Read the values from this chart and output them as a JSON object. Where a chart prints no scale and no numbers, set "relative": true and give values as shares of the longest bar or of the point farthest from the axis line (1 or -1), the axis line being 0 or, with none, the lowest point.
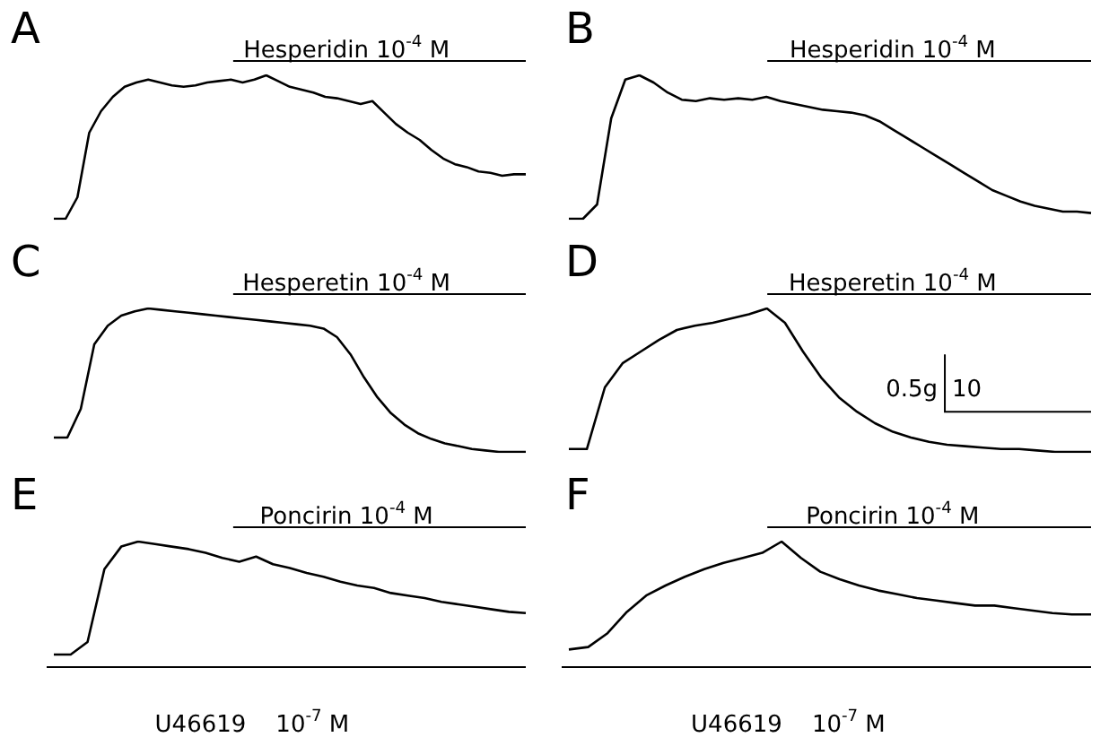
{
  "chart_data": [
    {
      "type": "line",
      "title": "A",
      "relative": true,
      "marker": "none",
      "categories": [
        null,
        null,
        null,
        null,
        null,
        null,
        null,
        null,
        null,
        null,
        null,
        null,
        null,
        null,
        null,
        null,
        null,
        null,
        null,
        null,
        null,
        null,
        null,
        null,
        null,
        null,
        null,
        null,
        null,
        null,
        null,
        null,
        null,
        null,
        null,
        null,
        null,
        null,
        null,
        null,
        null
      ],
      "series": [
        {
          "color": "#000000",
          "values": [
            0,
            0,
            0.15,
            0.6,
            0.75,
            0.85,
            0.92,
            0.95,
            0.97,
            0.95,
            0.93,
            0.92,
            0.93,
            0.95,
            0.96,
            0.97,
            0.95,
            0.97,
            1,
            0.96,
            0.92,
            0.9,
            0.88,
            0.85,
            0.84,
            0.82,
            0.8,
            0.82,
            0.74,
            0.66,
            0.6,
            0.55,
            0.48,
            0.42,
            0.38,
            0.36,
            0.33,
            0.32,
            0.3,
            0.31,
            0.31
          ]
        }
      ],
      "annotations": [
        "Hesperidin 10$^{-4}$ M"
      ]
    },
    {
      "type": "line",
      "title": "B",
      "relative": true,
      "marker": "none",
      "categories": [
        null,
        null,
        null,
        null,
        null,
        null,
        null,
        null,
        null,
        null,
        null,
        null,
        null,
        null,
        null,
        null,
        null,
        null,
        null,
        null,
        null,
        null,
        null,
        null,
        null,
        null,
        null,
        null,
        null,
        null,
        null,
        null,
        null,
        null,
        null,
        null,
        null,
        null
      ],
      "series": [
        {
          "color": "#000000",
          "values": [
            0,
            0,
            0.1,
            0.7,
            0.97,
            1,
            0.95,
            0.88,
            0.83,
            0.82,
            0.84,
            0.83,
            0.84,
            0.83,
            0.85,
            0.82,
            0.8,
            0.78,
            0.76,
            0.75,
            0.74,
            0.72,
            0.68,
            0.62,
            0.56,
            0.5,
            0.44,
            0.38,
            0.32,
            0.26,
            0.2,
            0.16,
            0.12,
            0.09,
            0.07,
            0.05,
            0.05,
            0.04
          ]
        }
      ],
      "annotations": [
        "Hesperidin 10$^{-4}$ M"
      ]
    },
    {
      "type": "line",
      "title": "C",
      "relative": true,
      "marker": "none",
      "categories": [
        null,
        null,
        null,
        null,
        null,
        null,
        null,
        null,
        null,
        null,
        null,
        null,
        null,
        null,
        null,
        null,
        null,
        null,
        null,
        null,
        null,
        null,
        null,
        null,
        null,
        null,
        null,
        null,
        null,
        null,
        null,
        null,
        null,
        null,
        null,
        null
      ],
      "series": [
        {
          "color": "#000000",
          "values": [
            0.1,
            0.1,
            0.3,
            0.75,
            0.88,
            0.95,
            0.98,
            1,
            0.99,
            0.98,
            0.97,
            0.96,
            0.95,
            0.94,
            0.93,
            0.92,
            0.91,
            0.9,
            0.89,
            0.88,
            0.86,
            0.8,
            0.68,
            0.52,
            0.38,
            0.27,
            0.19,
            0.13,
            0.09,
            0.06,
            0.04,
            0.02,
            0.01,
            0,
            0,
            0
          ]
        }
      ],
      "annotations": [
        "Hesperetin 10$^{-4}$ M"
      ]
    },
    {
      "type": "line",
      "title": "D",
      "relative": true,
      "marker": "none",
      "categories": [
        null,
        null,
        null,
        null,
        null,
        null,
        null,
        null,
        null,
        null,
        null,
        null,
        null,
        null,
        null,
        null,
        null,
        null,
        null,
        null,
        null,
        null,
        null,
        null,
        null,
        null,
        null,
        null,
        null,
        null
      ],
      "series": [
        {
          "color": "#000000",
          "values": [
            0.02,
            0.02,
            0.45,
            0.62,
            0.7,
            0.78,
            0.85,
            0.88,
            0.9,
            0.93,
            0.96,
            1,
            0.9,
            0.7,
            0.52,
            0.38,
            0.28,
            0.2,
            0.14,
            0.1,
            0.07,
            0.05,
            0.04,
            0.03,
            0.02,
            0.02,
            0.01,
            0,
            0,
            0
          ]
        }
      ],
      "annotations": [
        "Hesperetin 10$^{-4}$ M",
        "0.5g",
        "10"
      ]
    },
    {
      "type": "line",
      "title": "E",
      "relative": true,
      "marker": "none",
      "categories": [
        null,
        null,
        null,
        null,
        null,
        null,
        null,
        null,
        null,
        null,
        null,
        null,
        null,
        null,
        null,
        null,
        null,
        null,
        null,
        null,
        null,
        null,
        null,
        null,
        null,
        null,
        null,
        null,
        null
      ],
      "series": [
        {
          "color": "#000000",
          "values": [
            0.1,
            0.1,
            0.2,
            0.78,
            0.96,
            1,
            0.98,
            0.96,
            0.94,
            0.91,
            0.87,
            0.84,
            0.88,
            0.82,
            0.79,
            0.75,
            0.72,
            0.68,
            0.65,
            0.63,
            0.59,
            0.57,
            0.55,
            0.52,
            0.5,
            0.48,
            0.46,
            0.44,
            0.43
          ]
        }
      ],
      "annotations": [
        "Poncirin 10$^{-4}$ M",
        "U46619    10$^{-7}$ M"
      ]
    },
    {
      "type": "line",
      "title": "F",
      "relative": true,
      "marker": "none",
      "categories": [
        null,
        null,
        null,
        null,
        null,
        null,
        null,
        null,
        null,
        null,
        null,
        null,
        null,
        null,
        null,
        null,
        null,
        null,
        null,
        null,
        null,
        null,
        null,
        null,
        null,
        null,
        null,
        null
      ],
      "series": [
        {
          "color": "#000000",
          "values": [
            0.14,
            0.16,
            0.27,
            0.44,
            0.57,
            0.65,
            0.72,
            0.78,
            0.83,
            0.87,
            0.91,
            1,
            0.87,
            0.76,
            0.7,
            0.65,
            0.61,
            0.58,
            0.55,
            0.53,
            0.51,
            0.49,
            0.49,
            0.47,
            0.45,
            0.43,
            0.42,
            0.42
          ]
        }
      ],
      "annotations": [
        "Poncirin 10$^{-4}$ M",
        "U46619    10$^{-7}$ M"
      ]
    }
  ]
}
